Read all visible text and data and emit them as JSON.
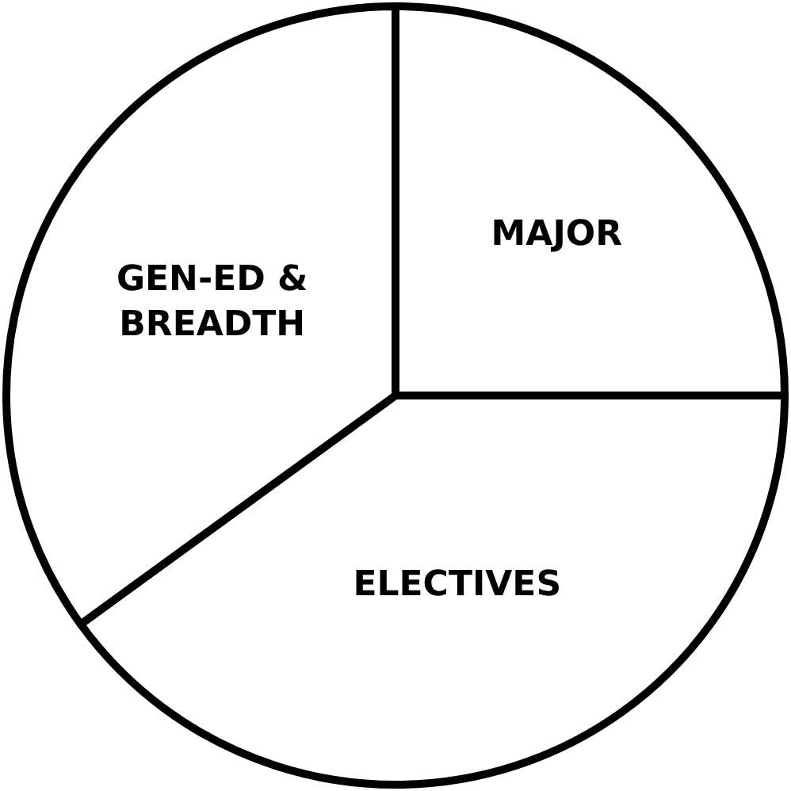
{
  "chart_data": {
    "type": "pie",
    "categories": [
      "MAJOR",
      "ELECTIVES",
      "GEN-ED &\nBREADTH"
    ],
    "values": [
      25,
      40,
      35
    ],
    "colors": [
      "#ffffff",
      "#ffffff",
      "#ffffff"
    ],
    "legend": false
  }
}
